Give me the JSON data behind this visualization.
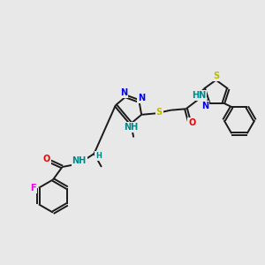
{
  "bg_color": "#e8e8e8",
  "bond_color": "#1a1a1a",
  "bond_width": 1.4,
  "atom_colors": {
    "N": "#0000ee",
    "S": "#bbbb00",
    "O": "#ee0000",
    "F": "#ee00ee",
    "H": "#008888"
  },
  "font_size": 7.0,
  "figsize": [
    3.0,
    3.0
  ],
  "dpi": 100,
  "xlim": [
    0,
    10
  ],
  "ylim": [
    0,
    10
  ]
}
